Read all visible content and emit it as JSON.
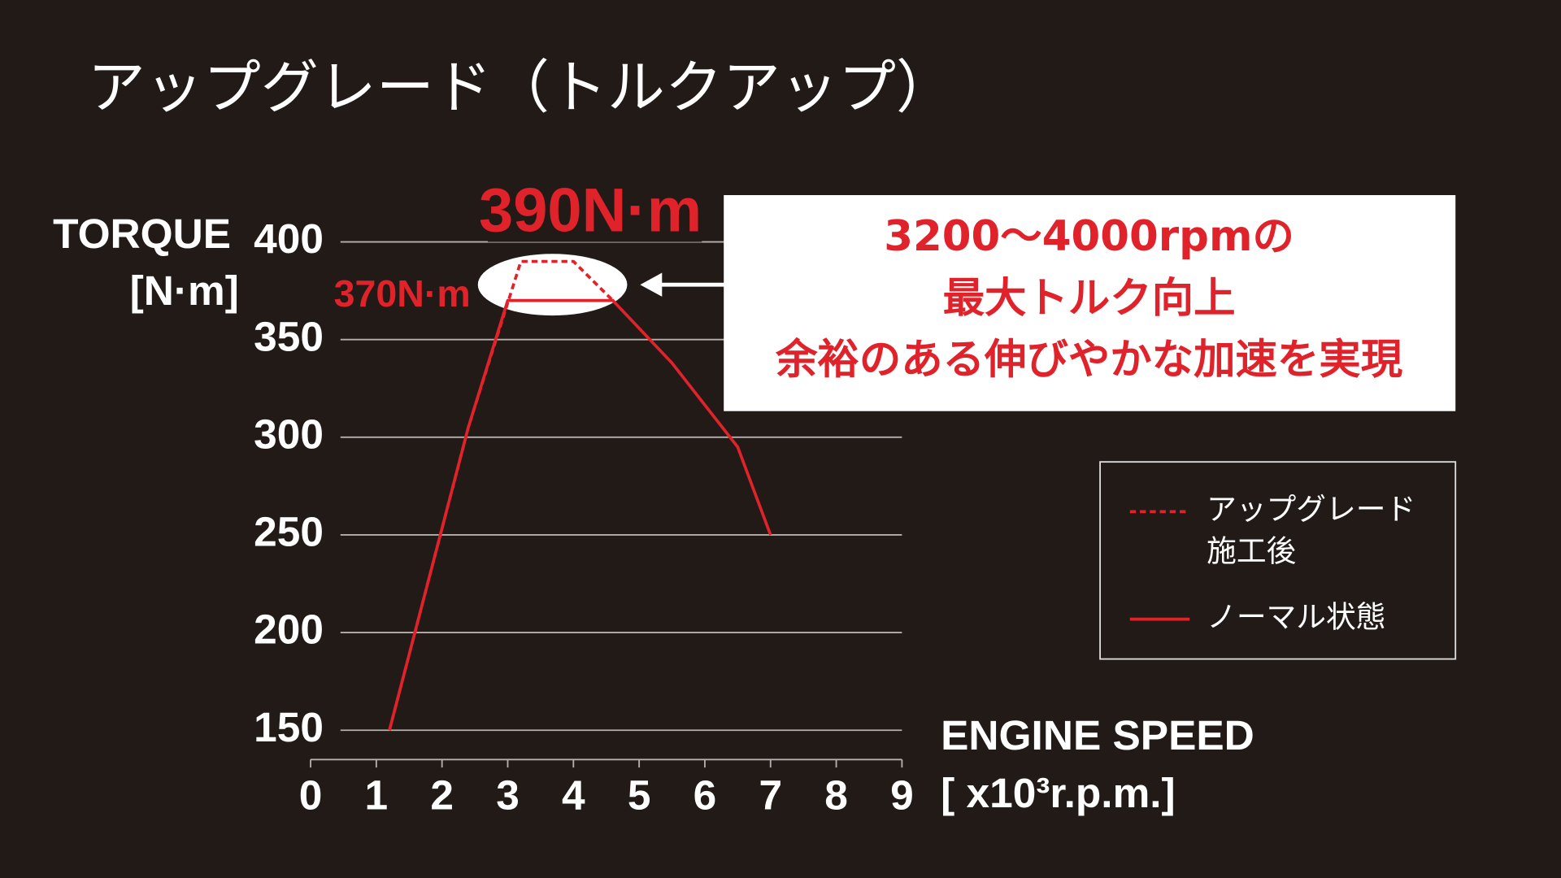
{
  "chart_data": {
    "type": "line",
    "title": "アップグレード（トルクアップ）",
    "ylabel": [
      "TORQUE",
      "[N·m]"
    ],
    "xlabel": [
      "ENGINE SPEED",
      "[ x10³r.p.m.]"
    ],
    "xlim": [
      0,
      9
    ],
    "xticks": [
      0,
      1,
      2,
      3,
      4,
      5,
      6,
      7,
      8,
      9
    ],
    "ylim": [
      135,
      400
    ],
    "yticks": [
      150,
      200,
      250,
      300,
      350,
      400
    ],
    "grid": true,
    "series": [
      {
        "name": "アップグレード施工後",
        "color": "#e0232b",
        "dash": true,
        "x": [
          1.2,
          2.4,
          3.2,
          4,
          4.6
        ],
        "values": [
          150,
          305,
          390,
          390,
          370
        ]
      },
      {
        "name": "ノーマル状態",
        "color": "#e0232b",
        "dash": false,
        "x": [
          1.2,
          2.4,
          3,
          4.6,
          5.5,
          6.5,
          7
        ],
        "values": [
          150,
          305,
          370,
          370,
          338,
          295,
          250
        ]
      }
    ],
    "peak_labels": [
      "390N·m",
      "370N·m"
    ],
    "callout": [
      "3200〜4000rpmの",
      "最大トルク向上",
      "余裕のある伸びやかな加速を実現"
    ]
  }
}
